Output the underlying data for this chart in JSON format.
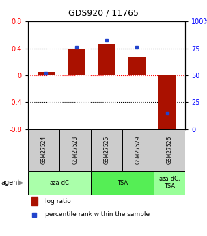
{
  "title": "GDS920 / 11765",
  "samples": [
    "GSM27524",
    "GSM27528",
    "GSM27525",
    "GSM27529",
    "GSM27526"
  ],
  "log_ratios": [
    0.05,
    0.4,
    0.46,
    0.27,
    -0.85
  ],
  "percentile_ranks": [
    52,
    76,
    82,
    76,
    15
  ],
  "groups": [
    {
      "label": "aza-dC",
      "indices": [
        0,
        1
      ],
      "color": "#aaffaa"
    },
    {
      "label": "TSA",
      "indices": [
        2,
        3
      ],
      "color": "#55ee55"
    },
    {
      "label": "aza-dC,\nTSA",
      "indices": [
        4
      ],
      "color": "#99ff99"
    }
  ],
  "bar_color": "#aa1100",
  "dot_color": "#2244cc",
  "ylim_left": [
    -0.8,
    0.8
  ],
  "ylim_right": [
    0,
    100
  ],
  "yticks_left": [
    -0.8,
    -0.4,
    0.0,
    0.4,
    0.8
  ],
  "yticks_right": [
    0,
    25,
    50,
    75,
    100
  ],
  "ytick_labels_left": [
    "-0.8",
    "-0.4",
    "0",
    "0.4",
    "0.8"
  ],
  "ytick_labels_right": [
    "0",
    "25",
    "50",
    "75",
    "100%"
  ],
  "hlines": [
    -0.4,
    0.0,
    0.4
  ],
  "legend_log": "log ratio",
  "legend_pct": "percentile rank within the sample",
  "bar_width": 0.55,
  "sample_header_bg": "#cccccc",
  "figsize": [
    3.03,
    3.45
  ],
  "dpi": 100
}
